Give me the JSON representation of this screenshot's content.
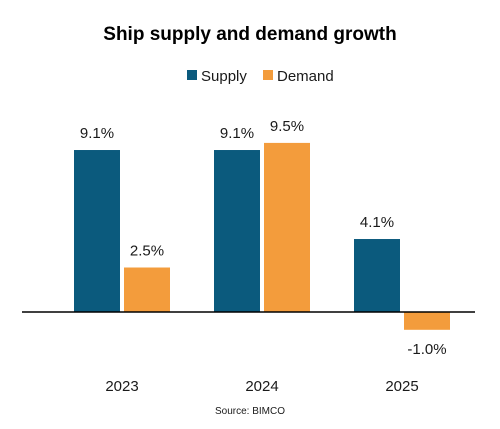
{
  "chart_data": {
    "type": "bar",
    "title": "Ship supply and demand growth",
    "categories": [
      "2023",
      "2024",
      "2025"
    ],
    "series": [
      {
        "name": "Supply",
        "color": "#0B5A7D",
        "values": [
          9.1,
          9.1,
          4.1
        ],
        "labels": [
          "9.1%",
          "9.1%",
          "4.1%"
        ]
      },
      {
        "name": "Demand",
        "color": "#F39C3C",
        "values": [
          2.5,
          9.5,
          -1.0
        ],
        "labels": [
          "2.5%",
          "9.5%",
          "-1.0%"
        ]
      }
    ],
    "source": "Source: BIMCO",
    "legend_position": "top",
    "grid": false
  }
}
